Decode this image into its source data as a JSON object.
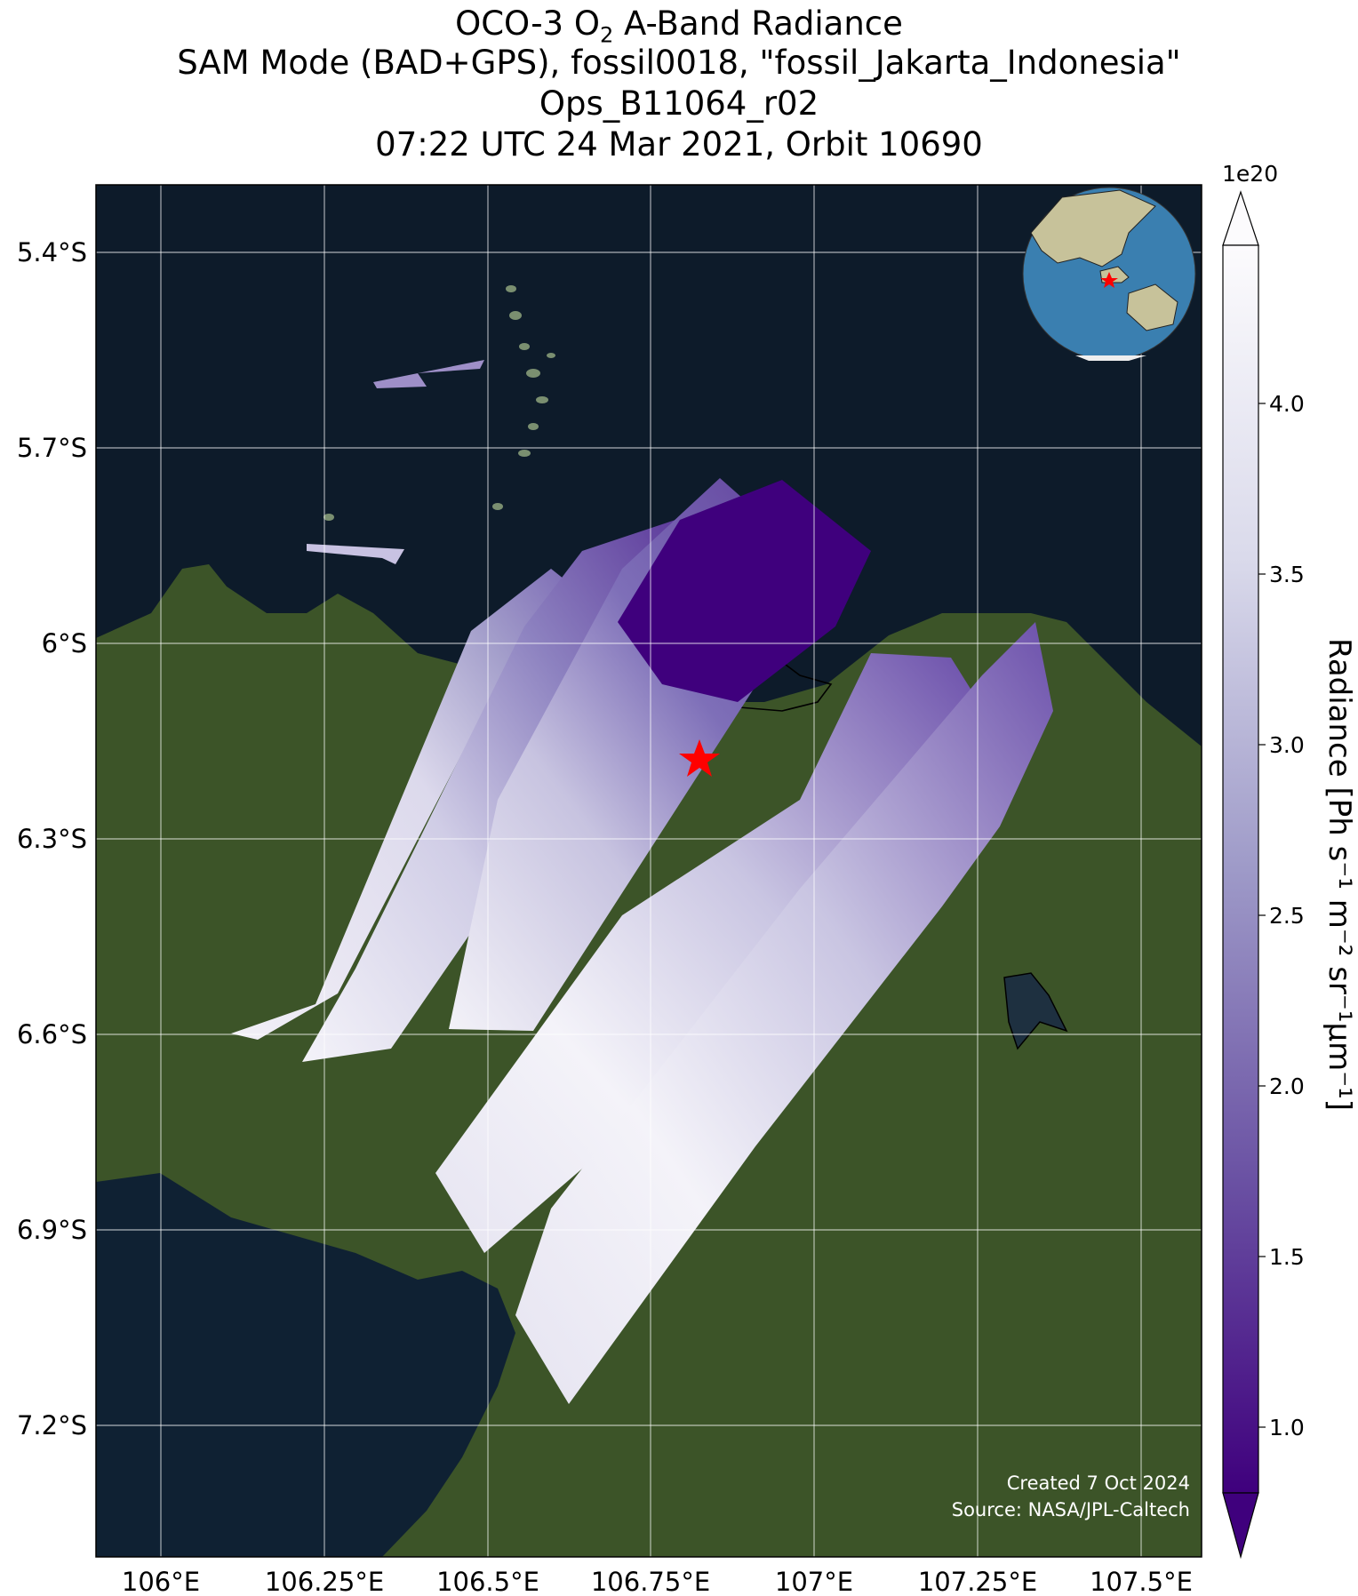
{
  "title": {
    "line1_prefix": "OCO-3 O",
    "line1_sub": "2",
    "line1_suffix": " A-Band Radiance",
    "line2": "SAM Mode (BAD+GPS), fossil0018, \"fossil_Jakarta_Indonesia\"",
    "line3": "Ops_B11064_r02",
    "line4": "07:22 UTC 24 Mar 2021, Orbit 10690"
  },
  "map": {
    "lat_labels": [
      "5.4°S",
      "5.7°S",
      "6°S",
      "6.3°S",
      "6.6°S",
      "6.9°S",
      "7.2°S"
    ],
    "lon_labels": [
      "106°E",
      "106.25°E",
      "106.5°E",
      "106.75°E",
      "107°E",
      "107.25°E",
      "107.5°E"
    ],
    "target_marker": "red-star",
    "target_color": "#ff0000",
    "credit_line1": "Created 7 Oct 2024",
    "credit_line2": "Source: NASA/JPL-Caltech",
    "inset": "globe centered on Southeast Asia with red star at Jakarta"
  },
  "colorbar": {
    "exponent": "1e20",
    "ticks": [
      "1.0",
      "1.5",
      "2.0",
      "2.5",
      "3.0",
      "3.5",
      "4.0"
    ],
    "label": "Radiance [Ph s⁻¹ m⁻² sr⁻¹μm⁻¹]",
    "colormap": "Purples_r",
    "color_low": "#3f007d",
    "color_high": "#ffffff",
    "extend": "both"
  },
  "colors": {
    "ocean": "#0d1b2a",
    "land": "#3c5428",
    "swath_light": "#eceaf4",
    "swath_mid": "#9e9ac8",
    "swath_dark": "#54278f"
  }
}
